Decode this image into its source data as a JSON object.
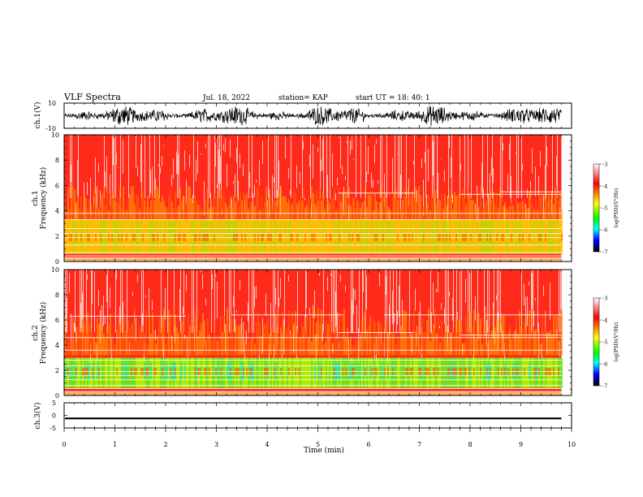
{
  "header": {
    "title": "VLF Spectra",
    "date": "Jul. 18, 2022",
    "station": "station= KAP",
    "start": "start UT =  18: 40: 1"
  },
  "chart_data": [
    {
      "type": "line",
      "panel": "ch1-waveform",
      "ylabel": "ch.1(V)",
      "ylim": [
        -10,
        10
      ],
      "yticks": [
        "10",
        "-10"
      ],
      "xlim": [
        0,
        10
      ],
      "x_extent_min": 9.8
    },
    {
      "type": "heatmap",
      "panel": "ch1-spectrogram",
      "ylabel_lines": [
        "ch.1",
        "Frequency (kHz)"
      ],
      "ylim": [
        0,
        10
      ],
      "yticks": [
        "0",
        "2",
        "4",
        "6",
        "8",
        "10"
      ],
      "xlim": [
        0,
        10
      ],
      "x_extent_min": 9.8,
      "colorbar": {
        "label": "log(PSD)(V²/Hz)",
        "range": [
          -7,
          -3
        ],
        "ticks": [
          "-3",
          "-4",
          "-5",
          "-6",
          "-7"
        ],
        "colors": [
          "#ffffff",
          "#ff0000",
          "#ffff00",
          "#00ff00",
          "#00ffff",
          "#0000ff",
          "#000000"
        ]
      }
    },
    {
      "type": "heatmap",
      "panel": "ch2-spectrogram",
      "ylabel_lines": [
        "ch.2",
        "Frequency (kHz)"
      ],
      "ylim": [
        0,
        10
      ],
      "yticks": [
        "0",
        "2",
        "4",
        "6",
        "8",
        "10"
      ],
      "xlim": [
        0,
        10
      ],
      "x_extent_min": 9.8,
      "colorbar": {
        "label": "log(PSD)(V²/Hz)",
        "range": [
          -7,
          -3
        ],
        "ticks": [
          "-3",
          "-4",
          "-5",
          "-6",
          "-7"
        ],
        "colors": [
          "#ffffff",
          "#ff0000",
          "#ffff00",
          "#00ff00",
          "#00ffff",
          "#0000ff",
          "#000000"
        ]
      }
    },
    {
      "type": "line",
      "panel": "ch3-waveform",
      "ylabel": "ch.3(V)",
      "ylim": [
        -5,
        5
      ],
      "yticks": [
        "5",
        "0",
        "-5"
      ],
      "xlim": [
        0,
        10
      ],
      "x_extent_min": 9.8,
      "mean_value": -1.2,
      "xlabel": "Time (min)",
      "xticks": [
        "0",
        "1",
        "2",
        "3",
        "4",
        "5",
        "6",
        "7",
        "8",
        "9",
        "10"
      ]
    }
  ]
}
